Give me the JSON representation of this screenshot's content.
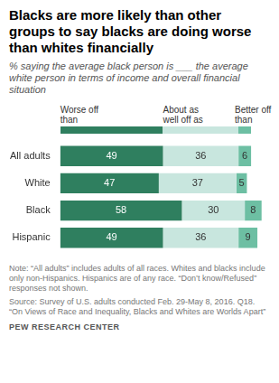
{
  "chart_data": {
    "type": "bar",
    "title": "Blacks are more likely than other groups to say blacks are doing worse than whites financially",
    "subtitle": "% saying the average black person is ___ the average white person in terms of income and overall financial situation",
    "categories": [
      "All adults",
      "White",
      "Black",
      "Hispanic"
    ],
    "series": [
      {
        "name": "Worse off than",
        "color": "#2f7f5f",
        "values": [
          49,
          47,
          58,
          49
        ]
      },
      {
        "name": "About as well off as",
        "color": "#c8e6de",
        "values": [
          36,
          37,
          30,
          36
        ]
      },
      {
        "name": "Better off than",
        "color": "#6dbfa3",
        "values": [
          6,
          5,
          8,
          9
        ]
      }
    ],
    "orientation": "horizontal",
    "stacked": true,
    "data_labels": true,
    "tick_labels": "y",
    "grid": false,
    "legend": "top",
    "note": "Note: “All adults” includes adults of all races. Whites and blacks include only non-Hispanics. Hispanics are of any race. “Don’t know/Refused” responses not shown.",
    "source": "Source: Survey of U.S. adults conducted Feb. 29-May 8, 2016. Q18. “On Views of Race and Inequality, Blacks and Whites are Worlds Apart”",
    "credit": "PEW RESEARCH CENTER"
  }
}
